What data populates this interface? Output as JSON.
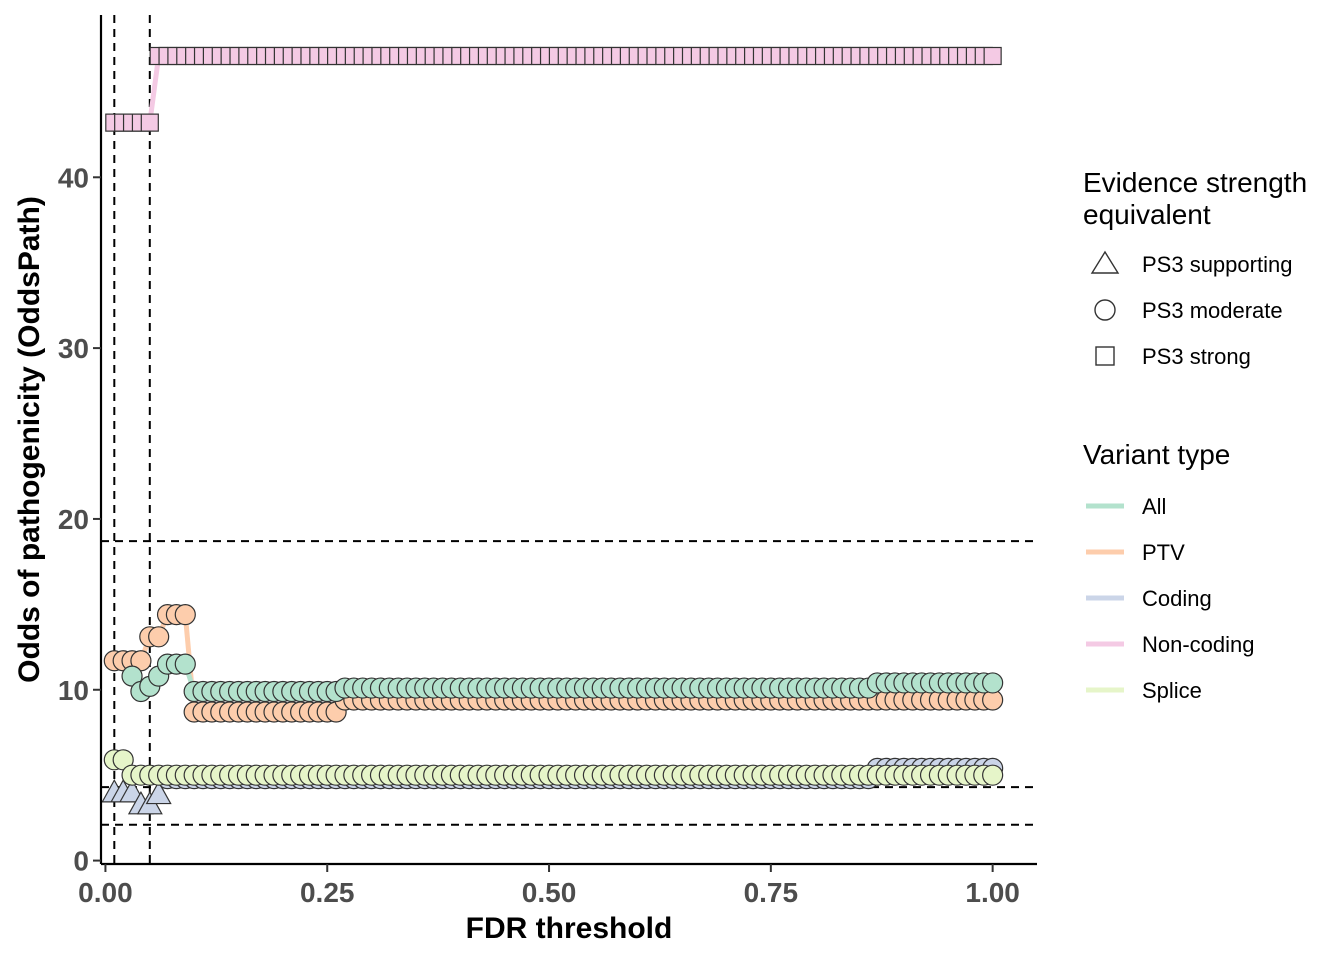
{
  "chart_data": {
    "type": "scatter",
    "xlabel": "FDR threshold",
    "ylabel": "Odds of pathogenicity (OddsPath)",
    "xlim": [
      -0.005,
      1.05
    ],
    "ylim": [
      -0.2,
      49.5
    ],
    "x_ticks": [
      0,
      0.25,
      0.5,
      0.75,
      1
    ],
    "x_tick_labels": [
      "0.00",
      "0.25",
      "0.50",
      "0.75",
      "1.00"
    ],
    "y_ticks": [
      0,
      10,
      20,
      30,
      40
    ],
    "y_tick_labels": [
      "0",
      "10",
      "20",
      "30",
      "40"
    ],
    "grid": false,
    "vlines": [
      0.01,
      0.05
    ],
    "hlines": [
      2.1,
      4.3,
      18.7
    ],
    "legend_placement": "right",
    "shape_legend": {
      "title_lines": [
        "Evidence strength",
        "equivalent"
      ],
      "items": [
        {
          "label": "PS3 supporting",
          "shape": "triangle"
        },
        {
          "label": "PS3 moderate",
          "shape": "circle"
        },
        {
          "label": "PS3 strong",
          "shape": "square"
        }
      ]
    },
    "color_legend": {
      "title": "Variant type",
      "items": [
        {
          "label": "All",
          "color": "#b3e2cd"
        },
        {
          "label": "PTV",
          "color": "#fdcdac"
        },
        {
          "label": "Coding",
          "color": "#cbd5e8"
        },
        {
          "label": "Non-coding",
          "color": "#f4cae4"
        },
        {
          "label": "Splice",
          "color": "#e6f5c9"
        }
      ]
    },
    "series": [
      {
        "name": "Non-coding",
        "color": "#f4cae4",
        "segments": [
          {
            "from": 0.01,
            "to": 0.05,
            "step": 0.01,
            "y": 43.2
          },
          {
            "from": 0.06,
            "to": 1.0,
            "step": 0.01,
            "y": 47.1
          }
        ]
      },
      {
        "name": "PTV",
        "color": "#fdcdac",
        "points": [
          [
            0.01,
            11.7
          ],
          [
            0.02,
            11.7
          ],
          [
            0.03,
            11.7
          ],
          [
            0.04,
            11.7
          ],
          [
            0.05,
            13.1
          ],
          [
            0.06,
            13.1
          ],
          [
            0.07,
            14.4
          ],
          [
            0.08,
            14.4
          ],
          [
            0.09,
            14.4
          ]
        ],
        "segments": [
          {
            "from": 0.1,
            "to": 0.26,
            "step": 0.01,
            "y": 8.7
          },
          {
            "from": 0.27,
            "to": 1.0,
            "step": 0.01,
            "y": 9.4
          }
        ]
      },
      {
        "name": "All",
        "color": "#b3e2cd",
        "points": [
          [
            0.03,
            10.8
          ],
          [
            0.04,
            9.9
          ],
          [
            0.05,
            10.2
          ],
          [
            0.06,
            10.8
          ],
          [
            0.07,
            11.5
          ],
          [
            0.08,
            11.5
          ],
          [
            0.09,
            11.5
          ]
        ],
        "segments": [
          {
            "from": 0.1,
            "to": 0.26,
            "step": 0.01,
            "y": 9.9
          },
          {
            "from": 0.27,
            "to": 0.86,
            "step": 0.01,
            "y": 10.1
          },
          {
            "from": 0.87,
            "to": 1.0,
            "step": 0.01,
            "y": 10.4
          }
        ]
      },
      {
        "name": "Coding",
        "color": "#cbd5e8",
        "points": [
          [
            0.01,
            4.0
          ],
          [
            0.02,
            4.0
          ],
          [
            0.03,
            4.0
          ],
          [
            0.04,
            3.3
          ],
          [
            0.05,
            3.3
          ],
          [
            0.06,
            3.9
          ]
        ],
        "segments": [
          {
            "from": 0.07,
            "to": 0.86,
            "step": 0.01,
            "y": 4.8
          },
          {
            "from": 0.87,
            "to": 1.0,
            "step": 0.01,
            "y": 5.4
          }
        ]
      },
      {
        "name": "Splice",
        "color": "#e6f5c9",
        "points": [
          [
            0.01,
            5.9
          ],
          [
            0.02,
            5.9
          ]
        ],
        "segments": [
          {
            "from": 0.03,
            "to": 1.0,
            "step": 0.01,
            "y": 5.0
          }
        ]
      }
    ]
  }
}
